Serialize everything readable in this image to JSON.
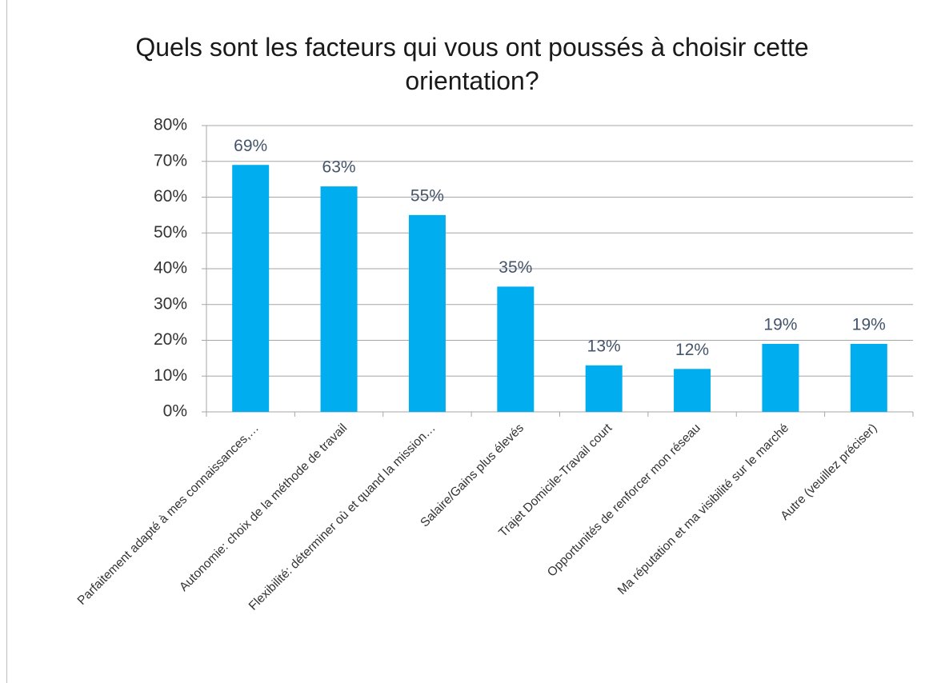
{
  "chart_data": {
    "type": "bar",
    "title": "Quels sont les facteurs qui vous ont poussés à choisir cette orientation?",
    "categories": [
      "Parfaitement adapté à mes connaissances,…",
      "Autonomie: choix de la méthode de travail",
      "Flexibilité: déterminer où et quand la mission…",
      "Salaire/Gains plus élevés",
      "Trajet Domicile-Travail court",
      "Opportunités de renforcer mon réseau",
      "Ma réputation et ma visibilité sur le marché",
      "Autre (veuillez préciser)"
    ],
    "values": [
      69,
      63,
      55,
      35,
      13,
      12,
      19,
      19
    ],
    "value_labels": [
      "69%",
      "63%",
      "55%",
      "35%",
      "13%",
      "12%",
      "19%",
      "19%"
    ],
    "color": "#00aeef",
    "ylim": [
      0,
      80
    ],
    "yticks": [
      {
        "value": 0,
        "label": "0%"
      },
      {
        "value": 10,
        "label": "10%"
      },
      {
        "value": 20,
        "label": "20%"
      },
      {
        "value": 30,
        "label": "30%"
      },
      {
        "value": 40,
        "label": "40%"
      },
      {
        "value": 50,
        "label": "50%"
      },
      {
        "value": 60,
        "label": "60%"
      },
      {
        "value": 70,
        "label": "70%"
      },
      {
        "value": 80,
        "label": "80%"
      }
    ],
    "grid": true
  }
}
